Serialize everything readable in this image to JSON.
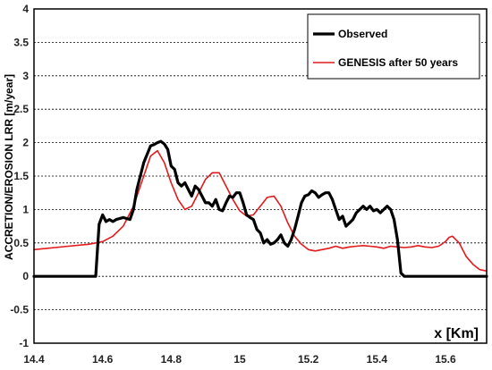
{
  "chart_data": {
    "type": "line",
    "xlabel": "x [Km]",
    "ylabel": "ACCRETION/EROSION LRR [m/year]",
    "xlim": [
      14.4,
      15.72
    ],
    "ylim": [
      -1,
      4
    ],
    "xticks": [
      "14.4",
      "14.6",
      "14.8",
      "15",
      "15.2",
      "15.4",
      "15.6"
    ],
    "yticks": [
      "-1",
      "-0.5",
      "0",
      "0.5",
      "1",
      "1.5",
      "2",
      "2.5",
      "3",
      "3.5",
      "4"
    ],
    "grid": "dashed-horizontal",
    "legend_position": "top-right",
    "series": [
      {
        "name": "Observed",
        "color": "#000000",
        "x": [
          14.4,
          14.58,
          14.59,
          14.6,
          14.61,
          14.62,
          14.63,
          14.64,
          14.66,
          14.68,
          14.69,
          14.7,
          14.72,
          14.74,
          14.75,
          14.76,
          14.77,
          14.78,
          14.79,
          14.8,
          14.81,
          14.82,
          14.83,
          14.84,
          14.85,
          14.86,
          14.87,
          14.88,
          14.89,
          14.9,
          14.91,
          14.92,
          14.93,
          14.94,
          14.95,
          14.96,
          14.97,
          14.98,
          14.99,
          15.0,
          15.01,
          15.02,
          15.03,
          15.04,
          15.05,
          15.06,
          15.07,
          15.08,
          15.09,
          15.1,
          15.11,
          15.12,
          15.13,
          15.14,
          15.15,
          15.16,
          15.17,
          15.18,
          15.19,
          15.2,
          15.21,
          15.22,
          15.23,
          15.24,
          15.25,
          15.26,
          15.27,
          15.28,
          15.29,
          15.3,
          15.31,
          15.32,
          15.33,
          15.34,
          15.35,
          15.36,
          15.37,
          15.38,
          15.39,
          15.4,
          15.41,
          15.42,
          15.43,
          15.44,
          15.45,
          15.46,
          15.47,
          15.48,
          15.49,
          15.5,
          15.51,
          15.52,
          15.53,
          15.54,
          15.55,
          15.56,
          15.57,
          15.58,
          15.59,
          15.6,
          15.61,
          15.62,
          15.63,
          15.64,
          15.72
        ],
        "y": [
          0,
          0,
          0.78,
          0.92,
          0.82,
          0.85,
          0.82,
          0.85,
          0.88,
          0.85,
          1.0,
          1.3,
          1.7,
          1.95,
          1.97,
          2.0,
          2.02,
          1.98,
          1.9,
          1.65,
          1.6,
          1.4,
          1.35,
          1.4,
          1.3,
          1.2,
          1.35,
          1.3,
          1.2,
          1.1,
          1.1,
          1.05,
          1.15,
          1.0,
          0.98,
          1.1,
          1.2,
          1.18,
          1.25,
          1.25,
          1.1,
          0.92,
          0.88,
          0.85,
          0.7,
          0.65,
          0.5,
          0.55,
          0.48,
          0.5,
          0.55,
          0.62,
          0.5,
          0.45,
          0.55,
          0.7,
          0.9,
          1.1,
          1.2,
          1.22,
          1.28,
          1.25,
          1.18,
          1.22,
          1.25,
          1.25,
          1.15,
          1.0,
          0.85,
          0.9,
          0.75,
          0.8,
          0.85,
          0.95,
          1.0,
          1.05,
          1.0,
          1.05,
          0.98,
          1.0,
          0.95,
          1.0,
          1.05,
          1.0,
          0.85,
          0.55,
          0.05,
          0,
          0,
          0,
          0,
          0,
          0,
          0,
          0,
          0,
          0,
          0,
          0,
          0,
          0,
          0,
          0,
          0,
          0
        ],
        "note_trim": true
      },
      {
        "name": "GENESIS after 50 years",
        "color": "#e31a1c",
        "x": [
          14.4,
          14.5,
          14.56,
          14.6,
          14.63,
          14.66,
          14.69,
          14.72,
          14.74,
          14.76,
          14.78,
          14.8,
          14.82,
          14.84,
          14.86,
          14.88,
          14.9,
          14.92,
          14.94,
          14.96,
          14.98,
          15.0,
          15.02,
          15.04,
          15.06,
          15.08,
          15.1,
          15.12,
          15.14,
          15.16,
          15.18,
          15.2,
          15.22,
          15.24,
          15.26,
          15.28,
          15.3,
          15.32,
          15.34,
          15.36,
          15.38,
          15.4,
          15.42,
          15.44,
          15.46,
          15.48,
          15.5,
          15.52,
          15.54,
          15.56,
          15.58,
          15.6,
          15.61,
          15.62,
          15.64,
          15.66,
          15.68,
          15.7,
          15.72
        ],
        "y": [
          0.4,
          0.45,
          0.48,
          0.52,
          0.6,
          0.75,
          1.05,
          1.5,
          1.8,
          1.88,
          1.7,
          1.4,
          1.15,
          1.0,
          1.05,
          1.25,
          1.45,
          1.55,
          1.55,
          1.35,
          1.15,
          0.98,
          0.9,
          0.92,
          1.05,
          1.18,
          1.2,
          1.05,
          0.8,
          0.6,
          0.48,
          0.4,
          0.38,
          0.4,
          0.42,
          0.45,
          0.42,
          0.44,
          0.45,
          0.46,
          0.45,
          0.44,
          0.42,
          0.45,
          0.44,
          0.43,
          0.44,
          0.46,
          0.44,
          0.43,
          0.45,
          0.52,
          0.58,
          0.6,
          0.5,
          0.3,
          0.18,
          0.1,
          0.08
        ]
      }
    ]
  }
}
